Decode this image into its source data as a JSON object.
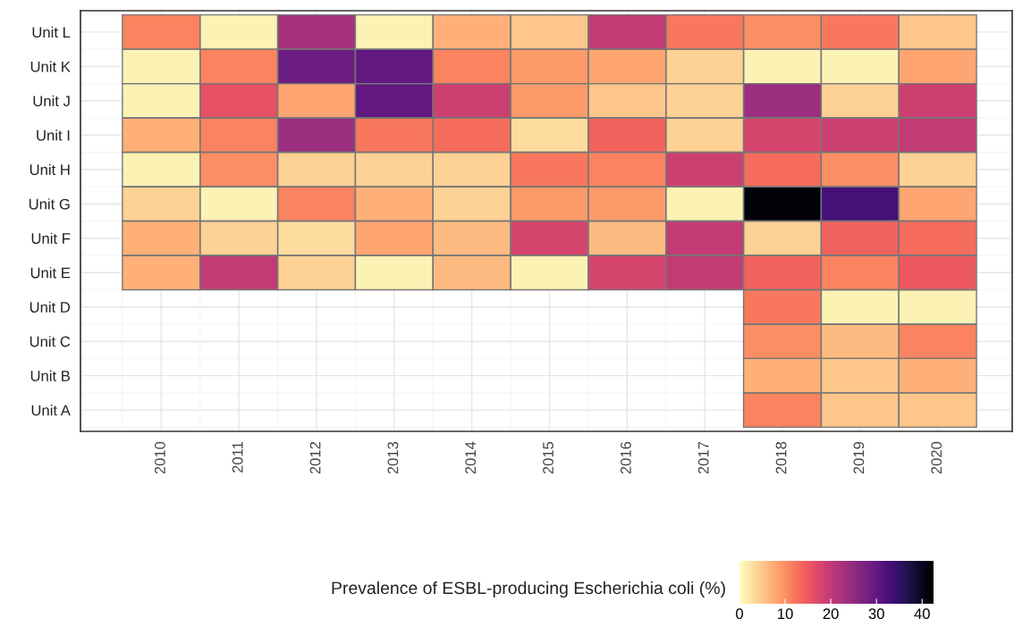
{
  "chart_data": {
    "type": "heatmap",
    "categories": [
      "2010",
      "2011",
      "2012",
      "2013",
      "2014",
      "2015",
      "2016",
      "2017",
      "2018",
      "2019",
      "2020"
    ],
    "y_categories": [
      "Unit L",
      "Unit K",
      "Unit J",
      "Unit I",
      "Unit H",
      "Unit G",
      "Unit F",
      "Unit E",
      "Unit D",
      "Unit C",
      "Unit B",
      "Unit A"
    ],
    "cells": [
      [
        11,
        1,
        23,
        1,
        7,
        5,
        20,
        12,
        10,
        12,
        5
      ],
      [
        1,
        11,
        29,
        30,
        11,
        9,
        8,
        4,
        1,
        1,
        8
      ],
      [
        1,
        16,
        8,
        30,
        19,
        9,
        5,
        4,
        24,
        4,
        19
      ],
      [
        7,
        11,
        24,
        12,
        13,
        3,
        14,
        4,
        18,
        19,
        20
      ],
      [
        1,
        10,
        4,
        4,
        4,
        12,
        11,
        19,
        13,
        10,
        4
      ],
      [
        4,
        1,
        11,
        7,
        4,
        9,
        9,
        1,
        42,
        33,
        8
      ],
      [
        7,
        4,
        3,
        8,
        6,
        18,
        6,
        20,
        4,
        14,
        13
      ],
      [
        7,
        20,
        4,
        1,
        6,
        1,
        18,
        20,
        14,
        11,
        15
      ],
      [
        null,
        null,
        null,
        null,
        null,
        null,
        null,
        null,
        12,
        1,
        1
      ],
      [
        null,
        null,
        null,
        null,
        null,
        null,
        null,
        null,
        10,
        6,
        11
      ],
      [
        null,
        null,
        null,
        null,
        null,
        null,
        null,
        null,
        7,
        5,
        7
      ],
      [
        null,
        null,
        null,
        null,
        null,
        null,
        null,
        null,
        11,
        5,
        5
      ]
    ],
    "clim": [
      0,
      42.5
    ],
    "cticks": [
      0,
      10,
      20,
      30,
      40
    ],
    "clabel": "Prevalence of ESBL-producing Escherichia coli (%)",
    "grid": true
  }
}
